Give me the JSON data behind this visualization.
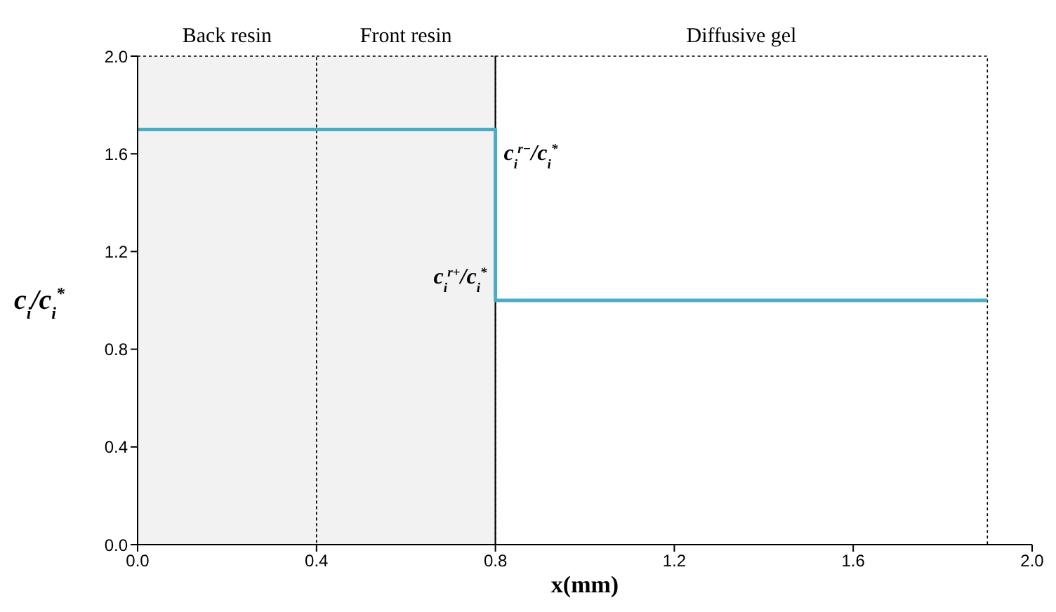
{
  "chart_data": {
    "type": "line",
    "xlabel": "x(mm)",
    "ylabel": "c$_{i}$/c$_{i}$$^{*}$",
    "x": [
      0,
      0.8,
      0.8,
      1.9
    ],
    "series": [
      {
        "color": "#4bacc6",
        "values": [
          1.7,
          1.7,
          1.0,
          1.0
        ]
      }
    ],
    "xlim": [
      0,
      2
    ],
    "xticks": [
      {
        "value": 0,
        "label": "0.0"
      },
      0.4,
      0.8,
      1.2,
      1.6,
      {
        "value": 2,
        "label": "2.0"
      }
    ],
    "ylim": [
      0,
      2
    ],
    "yticks": [
      {
        "value": 0,
        "label": "0.0"
      },
      0.4,
      0.8,
      1.2,
      1.6,
      {
        "value": 2,
        "label": "2.0"
      }
    ],
    "bands": [
      {
        "axis": "x",
        "from": 0,
        "to": 0.4,
        "label": "Back resin",
        "color": "#f2f2f2"
      },
      {
        "axis": "x",
        "from": 0.4,
        "to": 0.8,
        "label": "Front resin",
        "color": "#f2f2f2"
      },
      {
        "axis": "x",
        "from": 0.8,
        "to": 1.9,
        "label": "Diffusive gel",
        "color": "#ffffff"
      }
    ],
    "ref_lines": [
      {
        "axis": "x",
        "value": 0.8,
        "color": "#000000",
        "line_style": "solid"
      }
    ],
    "annotations": [
      {
        "text": "c$_{i}$$^{r−}$/c$_{i}$$^{*}$",
        "x": 0.8,
        "y": 1.7
      },
      {
        "text": "c$_{i}$$^{r+}$/c$_{i}$$^{*}$",
        "x": 0.8,
        "y": 1.0
      }
    ],
    "grid": false,
    "marker": "none",
    "line_style": "solid"
  }
}
